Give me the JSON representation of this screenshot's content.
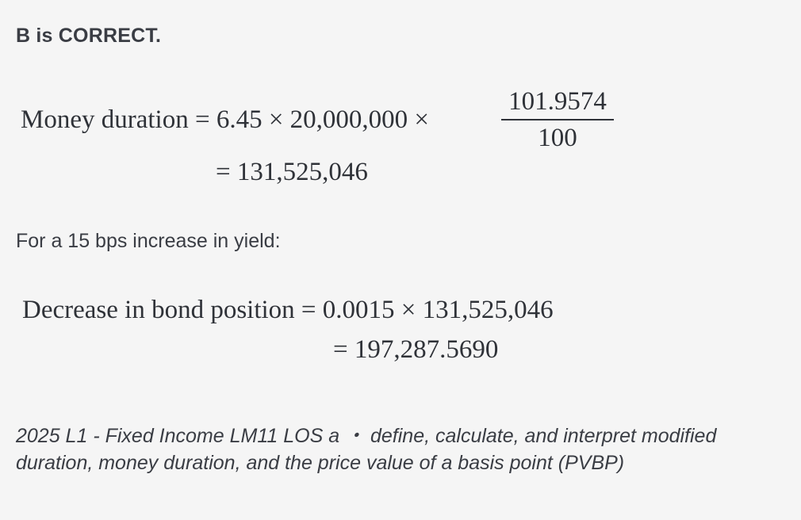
{
  "answer": {
    "heading": "B is CORRECT."
  },
  "money_duration": {
    "line1": "Money duration = 6.45 × 20,000,000 ×",
    "fraction_numerator": "101.9574",
    "fraction_denominator": "100",
    "line2": "= 131,525,046"
  },
  "yield_intro": "For a 15 bps increase in yield:",
  "decrease": {
    "line1": "Decrease in bond position = 0.0015 × 131,525,046",
    "line2": "= 197,287.5690"
  },
  "reference": "2025 L1 - Fixed Income LM11 LOS a ・ define, calculate, and interpret modified duration, money duration, and the price value of a basis point (PVBP)"
}
